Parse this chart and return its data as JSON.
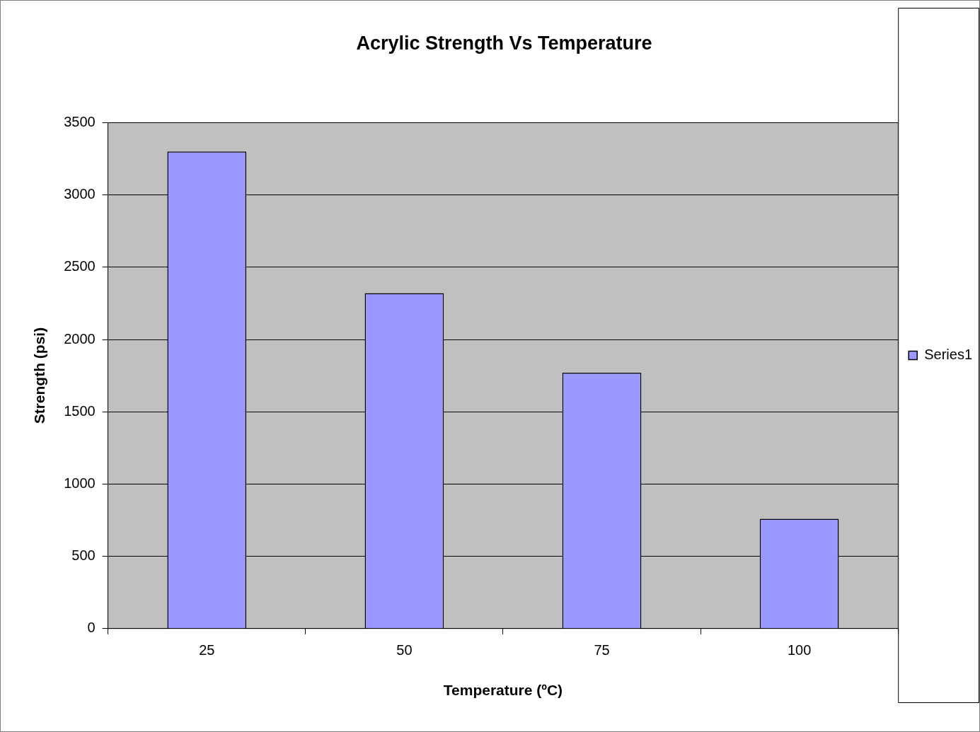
{
  "chart_data": {
    "type": "bar",
    "title": "Acrylic Strength Vs Temperature",
    "xlabel": "Temperature (ºC)",
    "ylabel": "Strength (psi)",
    "categories": [
      "25",
      "50",
      "75",
      "100"
    ],
    "series": [
      {
        "name": "Series1",
        "color": "#9999ff",
        "values": [
          3300,
          2320,
          1770,
          760
        ]
      }
    ],
    "ylim": [
      0,
      3500
    ],
    "yticks": [
      0,
      500,
      1000,
      1500,
      2000,
      2500,
      3000,
      3500
    ],
    "grid": "y",
    "legend": "right"
  }
}
